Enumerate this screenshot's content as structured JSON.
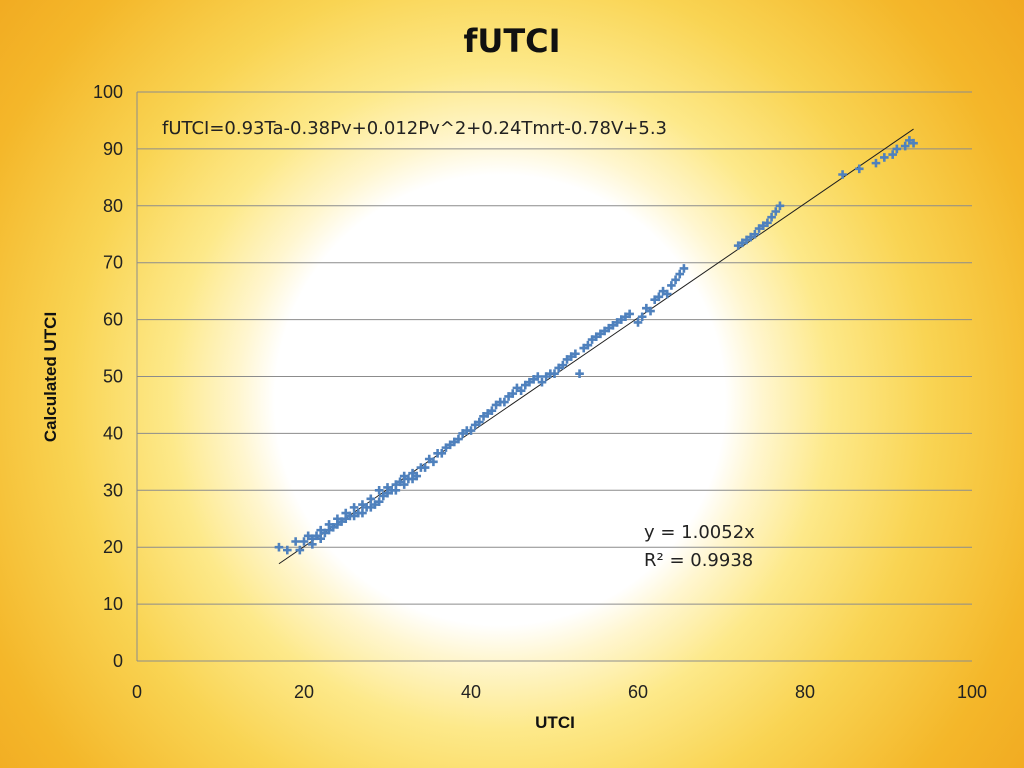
{
  "chart_data": {
    "type": "scatter",
    "title": "fUTCI",
    "xlabel": "UTCI",
    "ylabel": "Calculated UTCI",
    "xlim": [
      0,
      100
    ],
    "ylim": [
      0,
      100
    ],
    "x_ticks": [
      0,
      20,
      40,
      60,
      80,
      100
    ],
    "y_ticks": [
      0,
      10,
      20,
      30,
      40,
      50,
      60,
      70,
      80,
      90,
      100
    ],
    "grid": {
      "horizontal": true,
      "vertical": false
    },
    "legend": "none",
    "annotations": {
      "formula": "fUTCI=0.93Ta-0.38Pv+0.012Pv^2+0.24Tmrt-0.78V+5.3",
      "trend_equation": "y = 1.0052x",
      "r_squared": "R² = 0.9938"
    },
    "trendline": {
      "slope": 1.0052,
      "intercept": 0,
      "x_range": [
        17,
        93
      ]
    },
    "colors": {
      "points": "#4f81bd",
      "trendline": "#1f1f1f",
      "grid": "#8c8c8c"
    },
    "series": [
      {
        "x": [
          17,
          18,
          19,
          19.5,
          20,
          20.5,
          21,
          21,
          21.5,
          22,
          22,
          22.5,
          23,
          23,
          23.5,
          24,
          24,
          24.5,
          25,
          25,
          25.5,
          26,
          26,
          26.5,
          27,
          27,
          27.5,
          28,
          28,
          28.5,
          29,
          29,
          29.5,
          30,
          30,
          30.5,
          31,
          31,
          31.5,
          32,
          32,
          32.5,
          33,
          33,
          33.5,
          34,
          34.5,
          35,
          35.5,
          36,
          36.5,
          37,
          37.5,
          38,
          38.5,
          39,
          39.5,
          40,
          40.5,
          41,
          41.5,
          42,
          42.5,
          43,
          43.5,
          44,
          44.5,
          45,
          45.5,
          46,
          46.5,
          47,
          47.5,
          48,
          48.5,
          49,
          49.5,
          50,
          50.5,
          51,
          51.5,
          52,
          52.5,
          53,
          53.5,
          54,
          54.5,
          55,
          55.5,
          56,
          56.5,
          57,
          57.5,
          58,
          58.5,
          59,
          60,
          60.5,
          61,
          61.5,
          62,
          62.5,
          63,
          63.5,
          64,
          64.5,
          65,
          65.5,
          72,
          72.5,
          73,
          73.5,
          74,
          74.5,
          75,
          75.5,
          76,
          76.5,
          77,
          84.5,
          86.5,
          88.5,
          89.5,
          90.5,
          91,
          92,
          92.5,
          93
        ],
        "y": [
          20,
          19.5,
          21,
          19.5,
          21,
          22,
          20.5,
          21.5,
          22,
          21.5,
          23,
          22.5,
          24,
          23,
          23.5,
          25,
          24,
          24.5,
          26,
          25,
          25.5,
          27,
          25.5,
          26,
          27.5,
          26,
          27,
          28.5,
          27,
          27.5,
          30,
          28,
          29,
          30.5,
          29.5,
          30,
          31,
          30,
          31.5,
          32.5,
          31,
          32,
          33,
          32,
          32.5,
          34,
          34,
          35.5,
          35,
          36.5,
          36.5,
          37.5,
          38,
          38.5,
          39,
          40,
          40.5,
          40.5,
          41.5,
          42,
          43,
          43.5,
          44,
          45,
          45.5,
          45.5,
          46.5,
          47,
          48,
          47.5,
          48.5,
          49,
          49.5,
          50,
          49,
          50,
          50.5,
          50.5,
          51.5,
          52,
          53,
          53.5,
          54,
          50.5,
          55,
          55.5,
          56.5,
          57,
          57.5,
          58,
          58.5,
          59,
          59.5,
          60,
          60.5,
          61,
          59.5,
          60.5,
          62,
          61.5,
          63.5,
          64,
          65,
          64.5,
          66,
          67,
          68,
          69,
          73,
          73.5,
          74,
          74.5,
          75,
          76,
          76.5,
          77,
          78,
          79,
          80,
          85.5,
          86.5,
          87.5,
          88.5,
          89,
          90,
          90.5,
          91.5,
          91
        ]
      }
    ]
  }
}
